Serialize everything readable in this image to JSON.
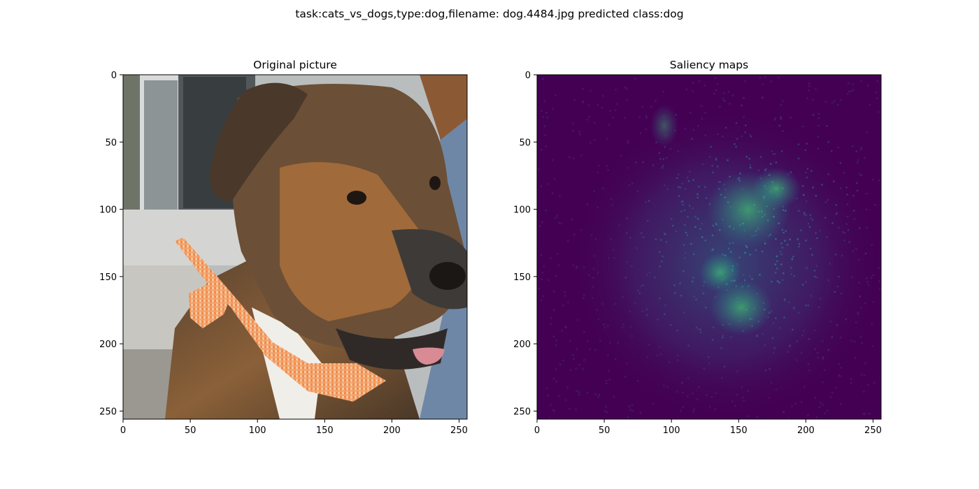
{
  "suptitle": "task:cats_vs_dogs,type:dog,filename: dog.4484.jpg predicted class:dog",
  "chart_data": [
    {
      "type": "heatmap",
      "title": "Original picture",
      "content": "RGB photograph of a brown/black dog with an orange gingham bandana",
      "xlim": [
        0,
        256
      ],
      "ylim": [
        256,
        0
      ],
      "xticks": [
        0,
        50,
        100,
        150,
        200,
        250
      ],
      "yticks": [
        0,
        50,
        100,
        150,
        200,
        250
      ],
      "xtick_labels": [
        "0",
        "50",
        "100",
        "150",
        "200",
        "250"
      ],
      "ytick_labels": [
        "0",
        "50",
        "100",
        "150",
        "200",
        "250"
      ]
    },
    {
      "type": "heatmap",
      "title": "Saliency maps",
      "colormap": "viridis",
      "content": "per-pixel gradient saliency; brightest region roughly x 120-200, y 70-200",
      "xlim": [
        0,
        256
      ],
      "ylim": [
        256,
        0
      ],
      "xticks": [
        0,
        50,
        100,
        150,
        200,
        250
      ],
      "yticks": [
        0,
        50,
        100,
        150,
        200,
        250
      ],
      "xtick_labels": [
        "0",
        "50",
        "100",
        "150",
        "200",
        "250"
      ],
      "ytick_labels": [
        "0",
        "50",
        "100",
        "150",
        "200",
        "250"
      ]
    }
  ]
}
